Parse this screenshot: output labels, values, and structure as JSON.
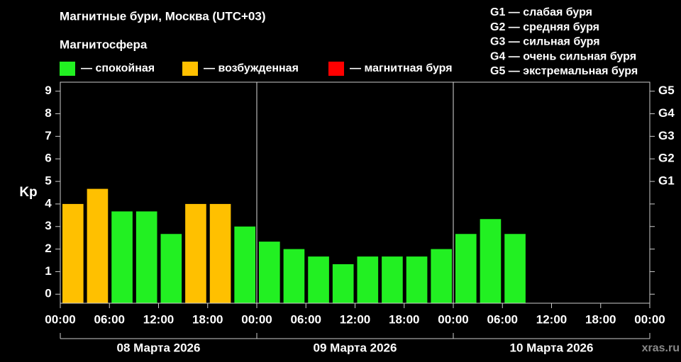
{
  "chart_data": {
    "type": "bar",
    "title": "Магнитные бури, Москва (UTC+03)",
    "legend": {
      "title": "Магнитосфера",
      "items": [
        {
          "label": "— спокойная",
          "color": "#22f022"
        },
        {
          "label": "— возбужденная",
          "color": "#ffc000"
        },
        {
          "label": "— магнитная буря",
          "color": "#ff0000"
        }
      ]
    },
    "storm_scale": [
      "G1 — слабая буря",
      "G2 — средняя буря",
      "G3 — сильная буря",
      "G4 — очень сильная буря",
      "G5 — экстремальная буря"
    ],
    "ylabel": "Kp",
    "x": [
      0,
      3,
      6,
      9,
      12,
      15,
      18,
      21,
      24,
      27,
      30,
      33,
      36,
      39,
      42,
      45,
      48,
      51,
      54
    ],
    "bar_width": 3,
    "values": [
      4,
      4.67,
      3.67,
      3.67,
      2.67,
      4,
      4,
      3,
      2.33,
      2,
      1.67,
      1.33,
      1.67,
      1.67,
      1.67,
      2,
      2.67,
      3.33,
      2.67
    ],
    "colors": [
      "#ffc000",
      "#ffc000",
      "#22f022",
      "#22f022",
      "#22f022",
      "#ffc000",
      "#ffc000",
      "#22f022",
      "#22f022",
      "#22f022",
      "#22f022",
      "#22f022",
      "#22f022",
      "#22f022",
      "#22f022",
      "#22f022",
      "#22f022",
      "#22f022",
      "#22f022"
    ],
    "xlim": [
      0,
      72
    ],
    "xticks": [
      {
        "value": 0,
        "label": "00:00"
      },
      {
        "value": 6,
        "label": "06:00"
      },
      {
        "value": 12,
        "label": "12:00"
      },
      {
        "value": 18,
        "label": "18:00"
      },
      {
        "value": 24,
        "label": "00:00"
      },
      {
        "value": 30,
        "label": "06:00"
      },
      {
        "value": 36,
        "label": "12:00"
      },
      {
        "value": 42,
        "label": "18:00"
      },
      {
        "value": 48,
        "label": "00:00"
      },
      {
        "value": 54,
        "label": "06:00"
      },
      {
        "value": 60,
        "label": "12:00"
      },
      {
        "value": 66,
        "label": "18:00"
      },
      {
        "value": 72,
        "label": "00:00"
      }
    ],
    "days": [
      {
        "label": "08 Марта 2026",
        "from": 0,
        "to": 24
      },
      {
        "label": "09 Марта 2026",
        "from": 24,
        "to": 48
      },
      {
        "label": "10 Марта 2026",
        "from": 48,
        "to": 72
      }
    ],
    "ylim": [
      -0.4,
      9.4
    ],
    "yticks": [
      0,
      1,
      2,
      3,
      4,
      5,
      6,
      7,
      8,
      9
    ],
    "y2ticks": [
      {
        "value": 5,
        "label": "G1"
      },
      {
        "value": 6,
        "label": "G2"
      },
      {
        "value": 7,
        "label": "G3"
      },
      {
        "value": 8,
        "label": "G4"
      },
      {
        "value": 9,
        "label": "G5"
      }
    ],
    "watermark": "xras.ru"
  }
}
